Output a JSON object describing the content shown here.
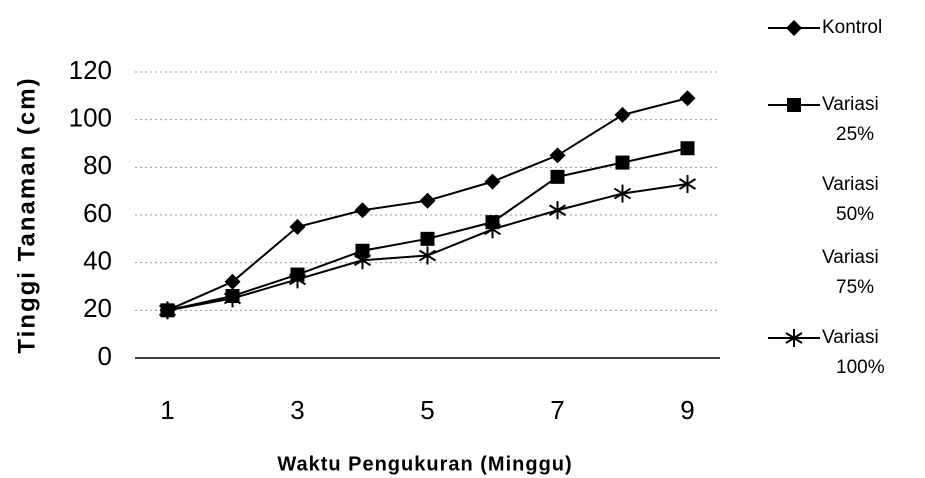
{
  "chart_data": {
    "type": "line",
    "xlabel": "Waktu Pengukuran (Minggu)",
    "ylabel": "Tinggi Tanaman (cm)",
    "categories": [
      "1",
      null,
      "3",
      null,
      "5",
      null,
      "7",
      null,
      "9"
    ],
    "series": [
      {
        "name": "Kontrol",
        "color": "#000000",
        "marker": "diamond",
        "values": [
          20,
          32,
          55,
          62,
          66,
          74,
          85,
          102,
          109
        ]
      },
      {
        "name": "Variasi 25%",
        "color": "#000000",
        "marker": "square",
        "values": [
          20,
          26,
          35,
          45,
          50,
          57,
          76,
          82,
          88
        ]
      },
      {
        "name": "Variasi 50%",
        "values": [
          null,
          null,
          null,
          null,
          null,
          null,
          null,
          null,
          null
        ]
      },
      {
        "name": "Variasi 75%",
        "values": [
          null,
          null,
          null,
          null,
          null,
          null,
          null,
          null,
          null
        ]
      },
      {
        "name": "Variasi 100%",
        "color": "#000000",
        "marker": "asterisk",
        "values": [
          20,
          25,
          33,
          41,
          43,
          54,
          62,
          69,
          73
        ]
      }
    ],
    "ylim": [
      0,
      120
    ],
    "yticks": [
      0,
      20,
      40,
      60,
      80,
      100,
      120
    ],
    "grid": true,
    "legend": "right"
  }
}
